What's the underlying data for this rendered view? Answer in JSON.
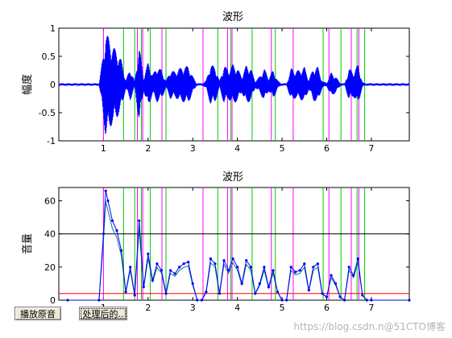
{
  "figure": {
    "plot1": {
      "title": "波形",
      "ylabel": "幅度",
      "xlim": [
        0,
        7.85
      ],
      "ylim": [
        -1,
        1
      ],
      "xticks": [
        1,
        2,
        3,
        4,
        5,
        6,
        7
      ],
      "yticks": [
        1,
        0.5,
        0,
        -0.5,
        -1
      ],
      "ytick_labels": [
        "1",
        "0.5",
        "0",
        "-0.5",
        "-1"
      ]
    },
    "plot2": {
      "title": "波形",
      "ylabel": "音量",
      "xlim": [
        0,
        7.85
      ],
      "ylim": [
        0,
        68
      ],
      "xticks": [
        1,
        2,
        3,
        4,
        5,
        6,
        7
      ],
      "yticks": [
        0,
        20,
        40,
        60
      ],
      "threshold_high": 40,
      "threshold_low": 4
    },
    "colors": {
      "signal": "#0000ff",
      "start_marker": "#ff00ff",
      "end_marker": "#00cc00",
      "threshold_high": "#000000",
      "threshold_low": "#ff0000",
      "energy_overlay": "#008080"
    },
    "markers": {
      "starts": [
        1.0,
        1.76,
        1.88,
        2.31,
        3.23,
        3.78,
        3.88,
        4.76,
        5.25,
        6.05,
        6.55,
        6.72
      ],
      "ends": [
        1.45,
        1.7,
        1.85,
        2.05,
        2.4,
        3.56,
        3.85,
        4.33,
        4.85,
        5.92,
        6.32,
        6.68,
        6.85
      ]
    }
  },
  "chart_data": {
    "type": "line",
    "title": "波形",
    "ylabel": "音量",
    "x": [
      0.2,
      0.9,
      1.0,
      1.05,
      1.1,
      1.2,
      1.3,
      1.4,
      1.5,
      1.6,
      1.7,
      1.8,
      1.9,
      2.0,
      2.1,
      2.2,
      2.3,
      2.4,
      2.5,
      2.6,
      2.7,
      2.8,
      2.9,
      3.0,
      3.1,
      3.2,
      3.3,
      3.4,
      3.5,
      3.6,
      3.7,
      3.8,
      3.9,
      4.0,
      4.1,
      4.2,
      4.3,
      4.4,
      4.5,
      4.6,
      4.7,
      4.8,
      4.9,
      5.0,
      5.1,
      5.2,
      5.3,
      5.4,
      5.5,
      5.6,
      5.7,
      5.8,
      5.9,
      6.0,
      6.1,
      6.2,
      6.3,
      6.4,
      6.5,
      6.6,
      6.7,
      6.8,
      6.9,
      7.0,
      7.85
    ],
    "values": [
      0,
      0,
      40,
      66,
      60,
      48,
      42,
      30,
      5,
      20,
      3,
      48,
      8,
      28,
      12,
      22,
      18,
      4,
      18,
      16,
      20,
      22,
      23,
      10,
      0,
      0,
      5,
      25,
      22,
      4,
      24,
      18,
      25,
      20,
      10,
      24,
      20,
      4,
      10,
      20,
      8,
      18,
      5,
      0,
      0,
      20,
      17,
      18,
      22,
      6,
      20,
      22,
      4,
      2,
      15,
      10,
      2,
      0,
      20,
      15,
      25,
      3,
      0,
      0,
      0
    ],
    "xlim": [
      0,
      7.85
    ],
    "ylim": [
      0,
      68
    ],
    "threshold_high": 40,
    "threshold_low": 4
  },
  "controls": {
    "play_original": "播放原音",
    "play_processed": "处理后的.."
  },
  "watermark": "https://blog.csdn.n@51CTO博客"
}
